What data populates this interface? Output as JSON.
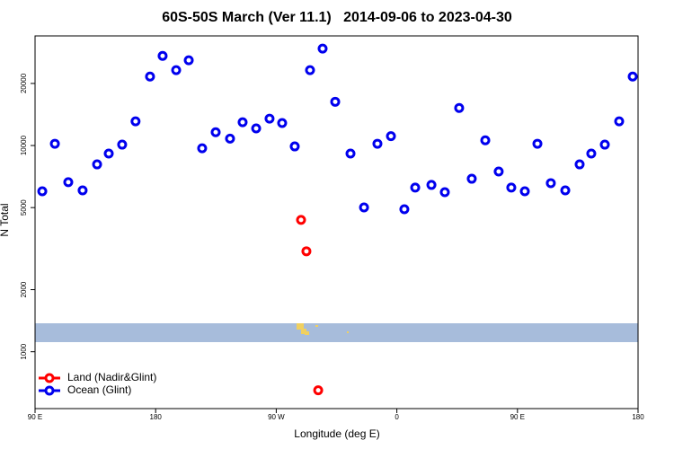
{
  "chart_data": {
    "type": "scatter",
    "title": "60S-50S March (Ver 11.1)   2014-09-06 to 2023-04-30",
    "xlabel": "Longitude (deg E)",
    "ylabel": "N Total",
    "log_y": true,
    "legend": "lower left",
    "xlim": [
      90,
      540
    ],
    "ylim": [
      530,
      34000
    ],
    "xticks": [
      {
        "value": 90,
        "label": "90 E"
      },
      {
        "value": 180,
        "label": "180"
      },
      {
        "value": 270,
        "label": "90 W"
      },
      {
        "value": 360,
        "label": "0"
      },
      {
        "value": 450,
        "label": "90 E"
      },
      {
        "value": 540,
        "label": "180"
      }
    ],
    "yticks": [
      1000,
      2000,
      5000,
      10000,
      20000
    ],
    "series": [
      {
        "name": "Land (Nadir&Glint)",
        "color": "#ff0000",
        "x": [
          288.5,
          292.5,
          301.3
        ],
        "values": [
          4360,
          3070,
          650
        ]
      },
      {
        "name": "Ocean (Glint)",
        "color": "#0000ee",
        "x": [
          95.4,
          104.8,
          114.8,
          125.5,
          136.3,
          145,
          155,
          165,
          175.8,
          185.2,
          195.3,
          204.7,
          214.7,
          224.8,
          235.5,
          244.9,
          255,
          265,
          274.4,
          283.8,
          295.2,
          304.6,
          314,
          325.4,
          335.5,
          345.5,
          355.6,
          365.6,
          373.7,
          385.8,
          395.8,
          406.5,
          415.9,
          426,
          436,
          445.4,
          455.5,
          464.9,
          474.9,
          485.7,
          496.4,
          505.1,
          515.2,
          525.9,
          536
        ],
        "values": [
          6000,
          10200,
          6640,
          6060,
          8100,
          9140,
          10100,
          13100,
          21600,
          27200,
          23200,
          25900,
          9700,
          11600,
          10800,
          12970,
          12100,
          13500,
          12850,
          9900,
          23200,
          29500,
          16300,
          9140,
          5010,
          10200,
          11100,
          4910,
          6250,
          6440,
          5940,
          15200,
          6900,
          10600,
          7480,
          6250,
          6000,
          10200,
          6570,
          6060,
          8100,
          9140,
          10100,
          13100,
          21600
        ]
      }
    ]
  }
}
